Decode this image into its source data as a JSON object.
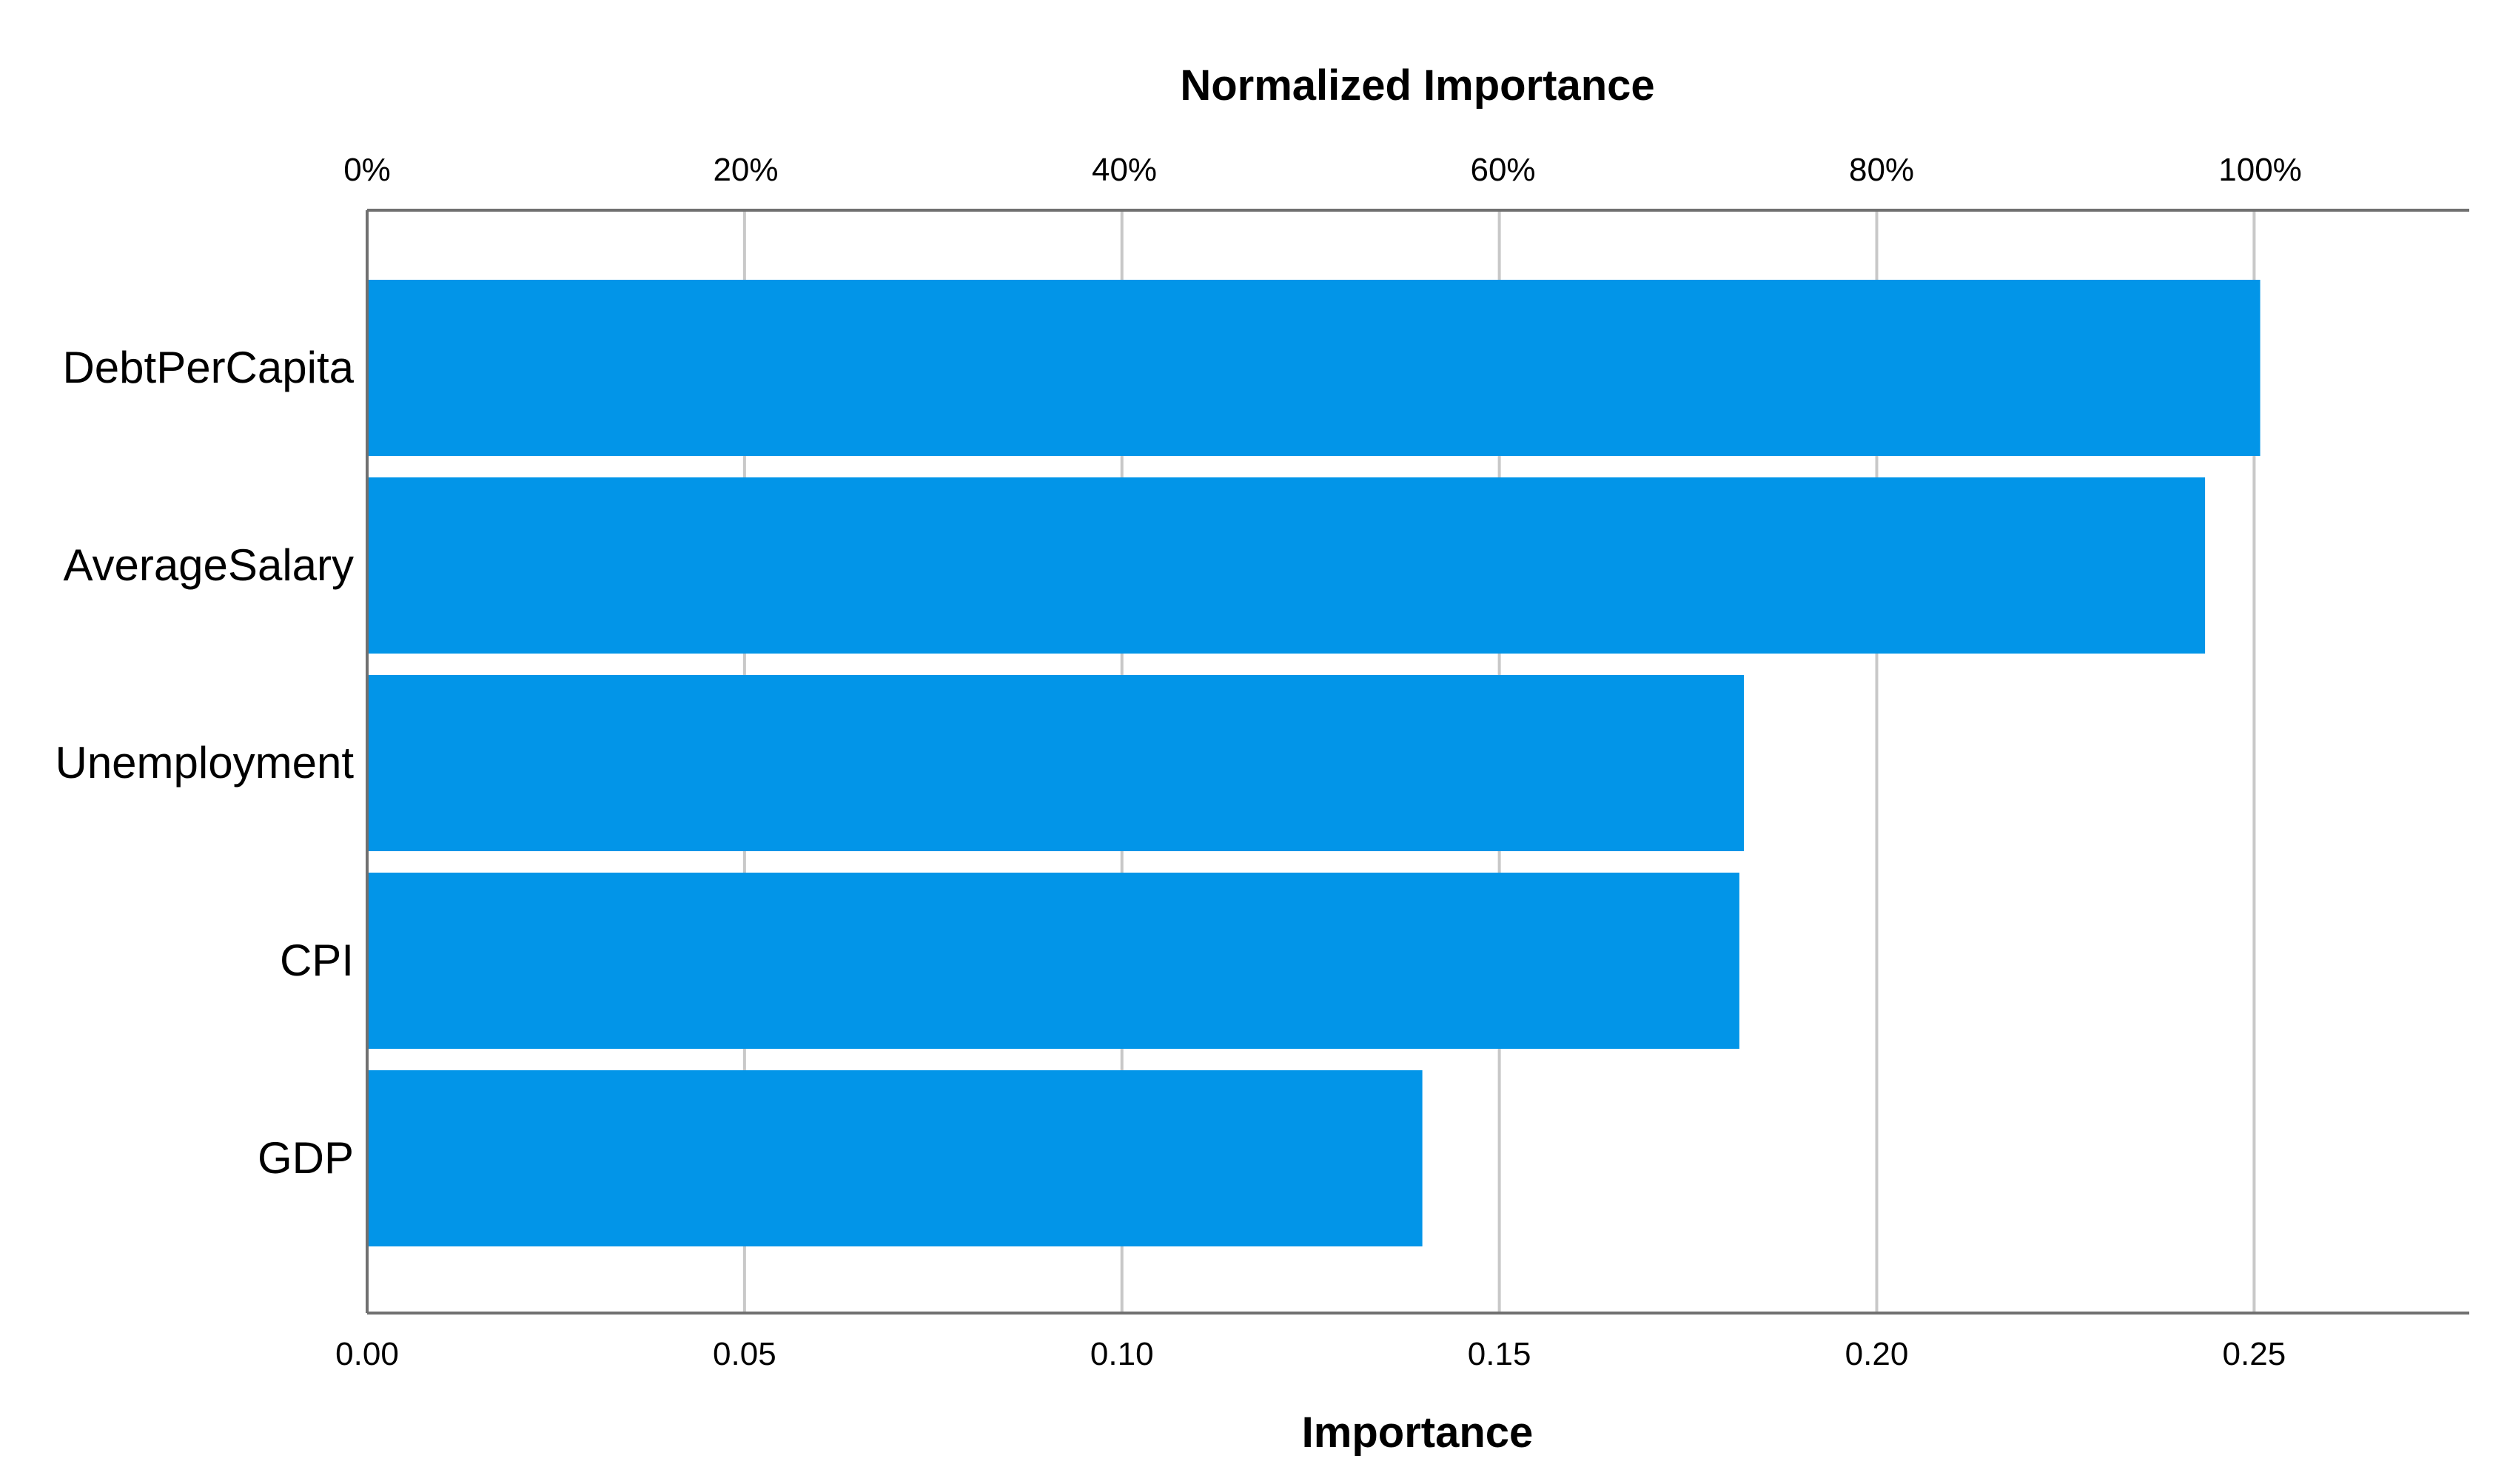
{
  "chart_data": {
    "type": "bar",
    "orientation": "horizontal",
    "top_axis_title": "Normalized Importance",
    "xlabel": "Importance",
    "ylabel": "",
    "categories": [
      "DebtPerCapita",
      "AverageSalary",
      "Unemployment",
      "CPI",
      "GDP"
    ],
    "values": [
      0.2508,
      0.2435,
      0.1824,
      0.1818,
      0.1398
    ],
    "xlim": [
      0,
      0.2785
    ],
    "bottom_ticks": [
      {
        "value": 0.0,
        "label": "0.00"
      },
      {
        "value": 0.05,
        "label": "0.05"
      },
      {
        "value": 0.1,
        "label": "0.10"
      },
      {
        "value": 0.15,
        "label": "0.15"
      },
      {
        "value": 0.2,
        "label": "0.20"
      },
      {
        "value": 0.25,
        "label": "0.25"
      }
    ],
    "top_ticks": [
      {
        "value": 0,
        "label": "0%"
      },
      {
        "value": 20,
        "label": "20%"
      },
      {
        "value": 40,
        "label": "40%"
      },
      {
        "value": 60,
        "label": "60%"
      },
      {
        "value": 80,
        "label": "80%"
      },
      {
        "value": 100,
        "label": "100%"
      }
    ],
    "top_axis_max_value": 0.2508,
    "grid": true,
    "bar_color": "#0295E8",
    "grid_color": "#C8C8C8",
    "axis_color": "#707070"
  }
}
